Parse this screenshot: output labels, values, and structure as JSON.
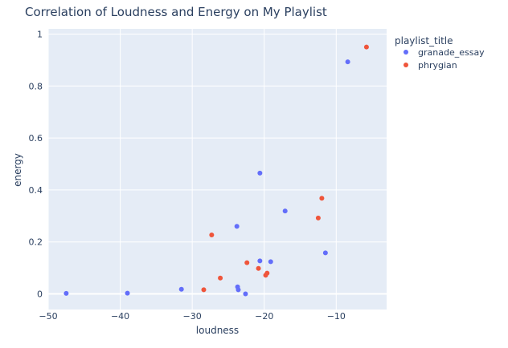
{
  "chart_data": {
    "type": "scatter",
    "title": "Correlation of Loudness and Energy on My Playlist",
    "xlabel": "loudness",
    "ylabel": "energy",
    "xlim": [
      -50,
      -3
    ],
    "ylim": [
      -0.06,
      1.02
    ],
    "xticks": [
      -50,
      -40,
      -30,
      -20,
      -10
    ],
    "yticks": [
      0,
      0.2,
      0.4,
      0.6,
      0.8,
      1
    ],
    "xtick_labels": [
      "−50",
      "−40",
      "−30",
      "−20",
      "−10"
    ],
    "ytick_labels": [
      "0",
      "0.2",
      "0.4",
      "0.6",
      "0.8",
      "1"
    ],
    "grid": true,
    "legend": {
      "title": "playlist_title",
      "placement": "top-right"
    },
    "series": [
      {
        "name": "granade_essay",
        "color": "#636efa",
        "points": [
          {
            "x": -47.5,
            "y": 0.002
          },
          {
            "x": -39.0,
            "y": 0.003
          },
          {
            "x": -31.5,
            "y": 0.018
          },
          {
            "x": -23.8,
            "y": 0.26
          },
          {
            "x": -23.7,
            "y": 0.027
          },
          {
            "x": -23.6,
            "y": 0.016
          },
          {
            "x": -22.6,
            "y": 0.0
          },
          {
            "x": -20.6,
            "y": 0.465
          },
          {
            "x": -20.6,
            "y": 0.127
          },
          {
            "x": -19.1,
            "y": 0.124
          },
          {
            "x": -17.1,
            "y": 0.319
          },
          {
            "x": -11.5,
            "y": 0.158
          },
          {
            "x": -8.4,
            "y": 0.893
          }
        ]
      },
      {
        "name": "phrygian",
        "color": "#ef553b",
        "points": [
          {
            "x": -28.4,
            "y": 0.016
          },
          {
            "x": -27.3,
            "y": 0.227
          },
          {
            "x": -26.1,
            "y": 0.061
          },
          {
            "x": -22.4,
            "y": 0.12
          },
          {
            "x": -20.8,
            "y": 0.098
          },
          {
            "x": -19.8,
            "y": 0.072
          },
          {
            "x": -19.6,
            "y": 0.08
          },
          {
            "x": -12.5,
            "y": 0.292
          },
          {
            "x": -12.0,
            "y": 0.368
          },
          {
            "x": -5.8,
            "y": 0.95
          }
        ]
      }
    ]
  }
}
